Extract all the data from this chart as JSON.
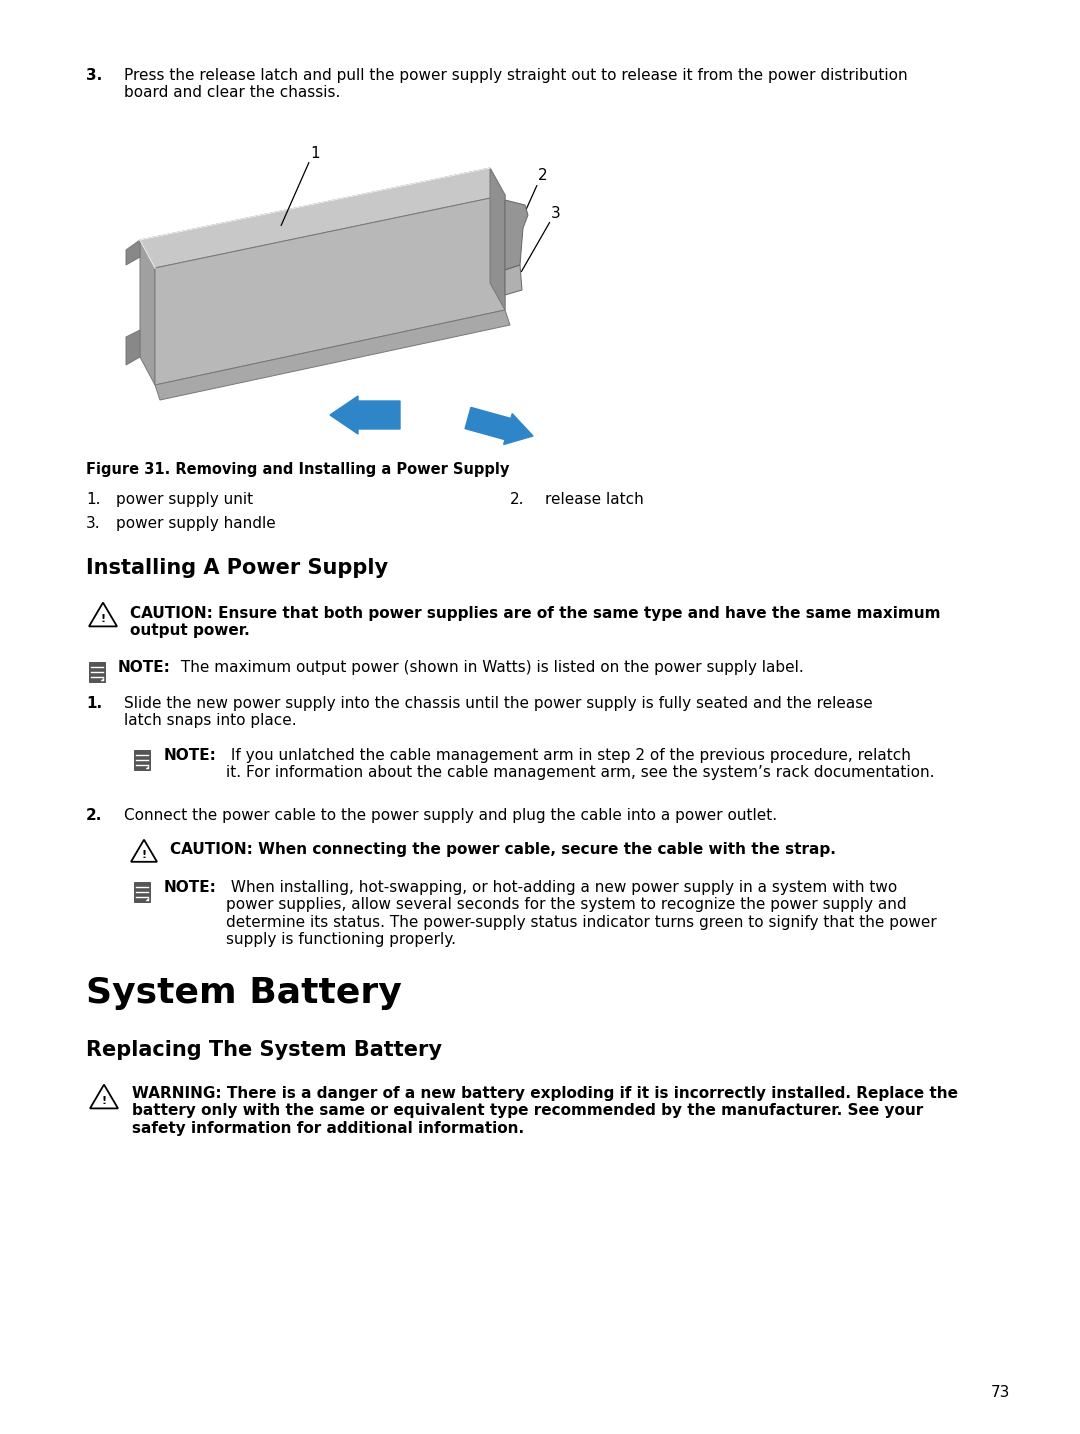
{
  "bg_color": "#ffffff",
  "text_color": "#000000",
  "page_number": "73",
  "content": {
    "step3_text": "Press the release latch and pull the power supply straight out to release it from the power distribution\nboard and clear the chassis.",
    "figure_caption": "Figure 31. Removing and Installing a Power Supply",
    "section_h2": "Installing A Power Supply",
    "caution1_bold": "CAUTION: Ensure that both power supplies are of the same type and have the same maximum\noutput power.",
    "note1_label": "NOTE:",
    "note1_rest": " The maximum output power (shown in Watts) is listed on the power supply label.",
    "step1_text": "Slide the new power supply into the chassis until the power supply is fully seated and the release\nlatch snaps into place.",
    "note2_label": "NOTE:",
    "note2_rest": " If you unlatched the cable management arm in step 2 of the previous procedure, relatch\nit. For information about the cable management arm, see the system’s rack documentation.",
    "step2_text": "Connect the power cable to the power supply and plug the cable into a power outlet.",
    "caution2_bold": "CAUTION: When connecting the power cable, secure the cable with the strap.",
    "note3_label": "NOTE:",
    "note3_rest": " When installing, hot-swapping, or hot-adding a new power supply in a system with two\npower supplies, allow several seconds for the system to recognize the power supply and\ndetermine its status. The power-supply status indicator turns green to signify that the power\nsupply is functioning properly.",
    "section_h1": "System Battery",
    "section_h2b": "Replacing The System Battery",
    "warning_bold": "WARNING: There is a danger of a new battery exploding if it is incorrectly installed. Replace the\nbattery only with the same or equivalent type recommended by the manufacturer. See your\nsafety information for additional information."
  },
  "blue_arrow_color": "#2e86c8",
  "body_top_color": "#c8c8c8",
  "body_front_color": "#a8a8a8",
  "body_bottom_color": "#b4b4b4",
  "body_right_color": "#909090",
  "body_edge_color": "#787878"
}
